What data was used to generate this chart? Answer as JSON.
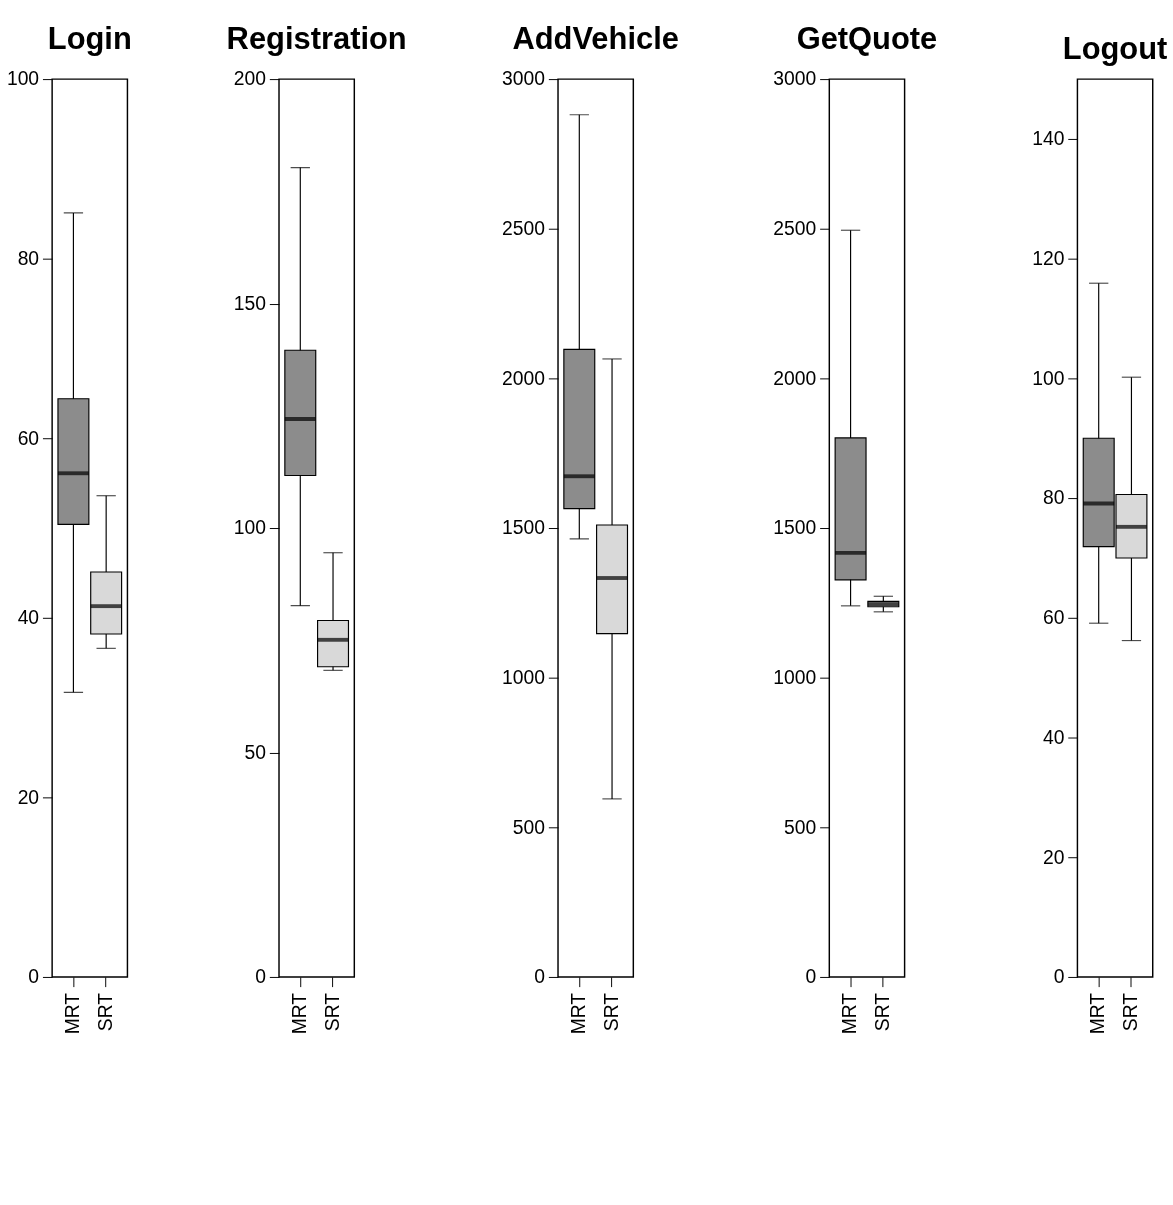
{
  "chart_data": [
    {
      "type": "box",
      "title": "Login",
      "categories": [
        "MRT",
        "SRT"
      ],
      "colors": [
        "#8c8c8c",
        "#d9d9d9"
      ],
      "ylim": [
        0,
        100
      ],
      "yticks": [
        0,
        20,
        40,
        60,
        80,
        100
      ],
      "grid": false,
      "boxes": [
        {
          "low": 31.7,
          "q1": 50.4,
          "median": 56.1,
          "q3": 64.4,
          "high": 85.1
        },
        {
          "low": 36.6,
          "q1": 38.2,
          "median": 41.3,
          "q3": 45.1,
          "high": 53.6
        }
      ]
    },
    {
      "type": "box",
      "title": "Registration",
      "categories": [
        "MRT",
        "SRT"
      ],
      "colors": [
        "#8c8c8c",
        "#d9d9d9"
      ],
      "ylim": [
        0,
        200
      ],
      "yticks": [
        0,
        50,
        100,
        150,
        200
      ],
      "grid": false,
      "boxes": [
        {
          "low": 82.7,
          "q1": 111.7,
          "median": 124.3,
          "q3": 139.6,
          "high": 180.3
        },
        {
          "low": 68.3,
          "q1": 69.1,
          "median": 75.1,
          "q3": 79.4,
          "high": 94.5
        }
      ]
    },
    {
      "type": "box",
      "title": "AddVehicle",
      "categories": [
        "MRT",
        "SRT"
      ],
      "colors": [
        "#8c8c8c",
        "#d9d9d9"
      ],
      "ylim": [
        0,
        3000
      ],
      "yticks": [
        0,
        500,
        1000,
        1500,
        2000,
        2500,
        3000
      ],
      "grid": false,
      "boxes": [
        {
          "low": 1464,
          "q1": 1565,
          "median": 1673,
          "q3": 2097,
          "high": 2881
        },
        {
          "low": 595,
          "q1": 1147,
          "median": 1333,
          "q3": 1510,
          "high": 2065
        }
      ]
    },
    {
      "type": "box",
      "title": "GetQuote",
      "categories": [
        "MRT",
        "SRT"
      ],
      "colors": [
        "#8c8c8c",
        "#d9d9d9"
      ],
      "ylim": [
        0,
        3000
      ],
      "yticks": [
        0,
        500,
        1000,
        1500,
        2000,
        2500,
        3000
      ],
      "grid": false,
      "boxes": [
        {
          "low": 1240,
          "q1": 1327,
          "median": 1417,
          "q3": 1801,
          "high": 2495
        },
        {
          "low": 1220,
          "q1": 1237,
          "median": 1246,
          "q3": 1255,
          "high": 1272
        }
      ]
    },
    {
      "type": "box",
      "title": "Logout",
      "categories": [
        "MRT",
        "SRT"
      ],
      "colors": [
        "#8c8c8c",
        "#d9d9d9"
      ],
      "ylim": [
        0,
        150
      ],
      "yticks": [
        0,
        20,
        40,
        60,
        80,
        100,
        120,
        140
      ],
      "grid": false,
      "boxes": [
        {
          "low": 59.1,
          "q1": 71.9,
          "median": 79.1,
          "q3": 90.0,
          "high": 115.9
        },
        {
          "low": 56.2,
          "q1": 70.0,
          "median": 75.2,
          "q3": 80.6,
          "high": 100.2
        }
      ]
    }
  ]
}
